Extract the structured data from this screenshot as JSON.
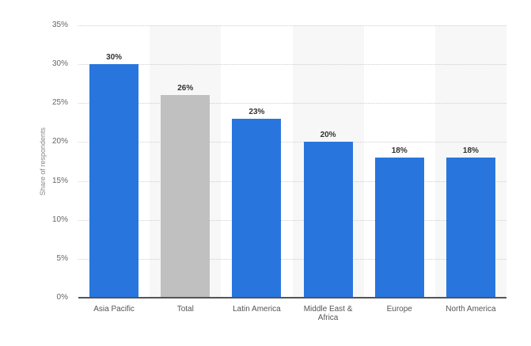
{
  "chart_data": {
    "type": "bar",
    "title": "",
    "xlabel": "",
    "ylabel": "Share of respondents",
    "ylim": [
      0,
      35
    ],
    "yticks": [
      "0%",
      "5%",
      "10%",
      "15%",
      "20%",
      "25%",
      "30%",
      "35%"
    ],
    "categories": [
      "Asia Pacific",
      "Total",
      "Latin America",
      "Middle East & Africa",
      "Europe",
      "North America"
    ],
    "values": [
      30,
      26,
      23,
      20,
      18,
      18
    ],
    "value_labels": [
      "30%",
      "26%",
      "23%",
      "20%",
      "18%",
      "18%"
    ],
    "bar_colors": [
      "#2876dd",
      "#c0c0c0",
      "#2876dd",
      "#2876dd",
      "#2876dd",
      "#2876dd"
    ],
    "grid": true,
    "legend": "none"
  }
}
